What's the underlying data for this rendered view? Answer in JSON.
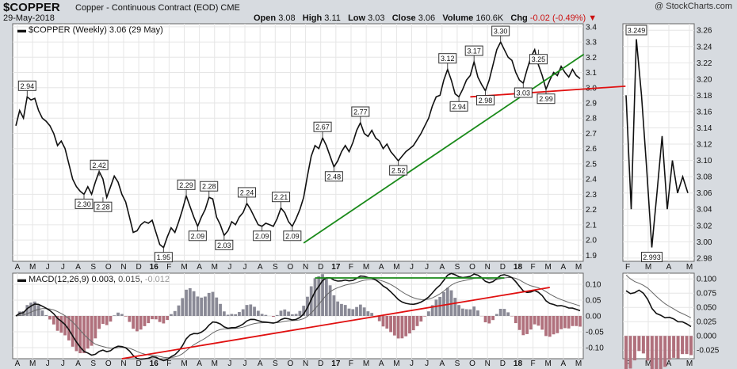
{
  "header": {
    "symbol": "$COPPER",
    "name": "Copper - Continuous Contract (EOD)",
    "exchange": "CME",
    "date": "29-May-2018",
    "logo": "@ StockCharts.com",
    "open_label": "Open",
    "open": "3.08",
    "high_label": "High",
    "high": "3.11",
    "low_label": "Low",
    "low": "3.03",
    "close_label": "Close",
    "close": "3.06",
    "volume_label": "Volume",
    "volume": "160.6K",
    "chg_label": "Chg",
    "chg": "-0.02 (-0.49%)"
  },
  "colors": {
    "price": "#111111",
    "trend_green": "#1a8a1a",
    "trend_red": "#e01010",
    "hist_pos": "#8a8a96",
    "hist_neg": "#b0707c",
    "panel_bg": "#ffffff",
    "grid": "#e6e6e6"
  },
  "chart_data": [
    {
      "type": "line",
      "title": "$COPPER (Weekly) 3.06 (29 May)",
      "legend": "$COPPER (Weekly) 3.06 (29 May)",
      "ylim": [
        1.86,
        3.42
      ],
      "y_ticks": [
        "1.9",
        "2.0",
        "2.1",
        "2.2",
        "2.3",
        "2.4",
        "2.5",
        "2.6",
        "2.7",
        "2.8",
        "2.9",
        "3.0",
        "3.1",
        "3.2",
        "3.3",
        "3.4"
      ],
      "x_ticks": [
        "A",
        "M",
        "J",
        "J",
        "A",
        "S",
        "O",
        "N",
        "D",
        "16",
        "F",
        "M",
        "A",
        "M",
        "J",
        "J",
        "A",
        "S",
        "O",
        "N",
        "D",
        "17",
        "F",
        "M",
        "A",
        "M",
        "J",
        "J",
        "A",
        "S",
        "O",
        "N",
        "D",
        "18",
        "F",
        "M",
        "A",
        "M"
      ],
      "series": [
        {
          "values": [
            2.75,
            2.85,
            2.8,
            2.94,
            2.92,
            2.93,
            2.85,
            2.8,
            2.78,
            2.75,
            2.7,
            2.62,
            2.65,
            2.6,
            2.5,
            2.4,
            2.35,
            2.32,
            2.3,
            2.35,
            2.3,
            2.38,
            2.45,
            2.4,
            2.28,
            2.35,
            2.42,
            2.38,
            2.3,
            2.25,
            2.15,
            2.05,
            2.06,
            2.1,
            2.12,
            2.11,
            2.13,
            2.05,
            1.97,
            1.95,
            2.02,
            2.08,
            2.05,
            2.12,
            2.2,
            2.29,
            2.22,
            2.15,
            2.09,
            2.15,
            2.2,
            2.28,
            2.27,
            2.15,
            2.1,
            2.03,
            2.06,
            2.12,
            2.1,
            2.15,
            2.18,
            2.24,
            2.2,
            2.15,
            2.1,
            2.09,
            2.11,
            2.1,
            2.09,
            2.14,
            2.21,
            2.18,
            2.12,
            2.09,
            2.14,
            2.2,
            2.28,
            2.42,
            2.55,
            2.62,
            2.6,
            2.67,
            2.62,
            2.55,
            2.48,
            2.52,
            2.58,
            2.62,
            2.58,
            2.64,
            2.72,
            2.77,
            2.7,
            2.68,
            2.72,
            2.67,
            2.65,
            2.6,
            2.63,
            2.58,
            2.55,
            2.52,
            2.55,
            2.58,
            2.6,
            2.62,
            2.66,
            2.7,
            2.75,
            2.8,
            2.88,
            2.94,
            2.95,
            3.05,
            3.12,
            3.05,
            2.96,
            2.94,
            2.99,
            3.05,
            3.08,
            3.17,
            3.07,
            3.02,
            2.98,
            3.05,
            3.15,
            3.25,
            3.3,
            3.25,
            3.2,
            3.18,
            3.1,
            3.05,
            3.03,
            3.12,
            3.2,
            3.25,
            3.15,
            3.08,
            2.99,
            3.05,
            3.1,
            3.08,
            3.14,
            3.1,
            3.07,
            3.12,
            3.08,
            3.06
          ]
        }
      ],
      "annotations": [
        "2.94",
        "2.30",
        "2.42",
        "2.28",
        "1.95",
        "2.29",
        "2.09",
        "2.28",
        "2.03",
        "2.24",
        "2.09",
        "2.21",
        "2.09",
        "2.67",
        "2.48",
        "2.77",
        "2.52",
        "3.12",
        "2.94",
        "3.17",
        "2.98",
        "3.30",
        "3.03",
        "3.25",
        "2.99"
      ],
      "trendlines": [
        {
          "name": "green support",
          "from": [
            76,
            1.98
          ],
          "to": [
            150,
            3.22
          ]
        },
        {
          "name": "red neckline",
          "from": [
            120,
            2.94
          ],
          "to": [
            161,
            3.01
          ]
        }
      ]
    },
    {
      "type": "line",
      "title": "",
      "ylim": [
        2.976,
        3.268
      ],
      "y_ticks": [
        "2.98",
        "3.00",
        "3.02",
        "3.04",
        "3.06",
        "3.08",
        "3.10",
        "3.12",
        "3.14",
        "3.16",
        "3.18",
        "3.20",
        "3.22",
        "3.24",
        "3.26"
      ],
      "x_ticks": [
        "F",
        "M",
        "A",
        "M"
      ],
      "series": [
        {
          "values": [
            3.18,
            3.04,
            3.249,
            3.18,
            3.09,
            2.993,
            3.06,
            3.13,
            3.04,
            3.1,
            3.06,
            3.08,
            3.06
          ]
        }
      ],
      "annotations": [
        "3.249",
        "2.993"
      ]
    },
    {
      "type": "line",
      "title": "MACD(12,26,9) 0.003, 0.015, -0.012",
      "legend": [
        "MACD(12,26,9)",
        "0.003,",
        "0.015,",
        "-0.012"
      ],
      "ylim": [
        -0.135,
        0.135
      ],
      "y_ticks": [
        "0.10",
        "0.05",
        "0.00",
        "-0.05",
        "-0.10"
      ],
      "x_ticks": [
        "A",
        "M",
        "J",
        "J",
        "A",
        "S",
        "O",
        "N",
        "D",
        "16",
        "F",
        "M",
        "A",
        "M",
        "J",
        "J",
        "A",
        "S",
        "O",
        "N",
        "D",
        "17",
        "F",
        "M",
        "A",
        "M",
        "J",
        "J",
        "A",
        "S",
        "O",
        "N",
        "D",
        "18",
        "F",
        "M",
        "A",
        "M"
      ],
      "trendlines": [
        {
          "name": "green top",
          "from": [
            79,
            0.12
          ],
          "to": [
            129,
            0.12
          ]
        },
        {
          "name": "red uptrend",
          "from": [
            28,
            -0.135
          ],
          "to": [
            141,
            0.09
          ]
        }
      ]
    },
    {
      "type": "line",
      "title": "",
      "ylim": [
        -0.04,
        0.11
      ],
      "y_ticks": [
        "0.100",
        "0.075",
        "0.050",
        "0.025",
        "0.000",
        "-0.025"
      ],
      "x_ticks": [
        "F",
        "M",
        "A",
        "M"
      ]
    }
  ]
}
